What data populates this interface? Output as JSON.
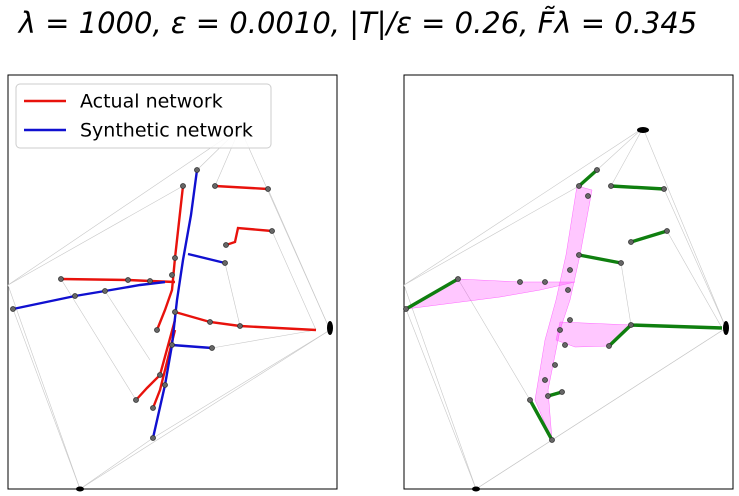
{
  "title": "λ = 1000, ε = 0.0010, |T|/ε = 0.26, F̃λ = 0.345",
  "legend": {
    "items": [
      {
        "label": "Actual network"
      },
      {
        "label": "Synthetic network"
      }
    ]
  }
}
